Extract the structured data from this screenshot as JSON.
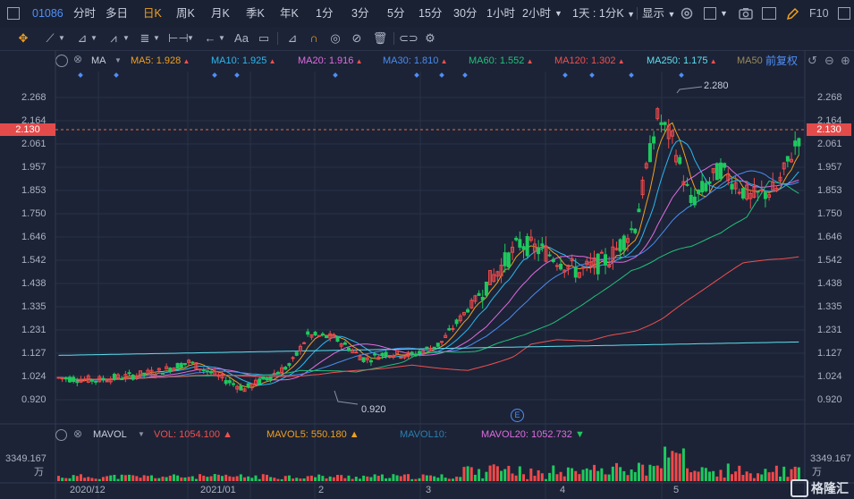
{
  "topbar": {
    "code": "01086",
    "items": [
      "分时",
      "多日",
      "日K",
      "周K",
      "月K",
      "季K",
      "年K",
      "1分",
      "3分",
      "5分",
      "15分",
      "30分",
      "1小时",
      "2小时"
    ],
    "active": "日K",
    "period_select": "1天 : 1分K",
    "display_label": "显示",
    "f10_label": "F10"
  },
  "toolbar": {
    "text_tool": "Aa"
  },
  "ma_bar": {
    "indicator": "MA",
    "items": [
      {
        "label": "MA5: 1.928",
        "color": "#f0a020"
      },
      {
        "label": "MA10: 1.925",
        "color": "#2bb8f0"
      },
      {
        "label": "MA20: 1.916",
        "color": "#e06ce0"
      },
      {
        "label": "MA30: 1.810",
        "color": "#4a8cf0"
      },
      {
        "label": "MA60: 1.552",
        "color": "#22c07a"
      },
      {
        "label": "MA120: 1.302",
        "color": "#f05050"
      },
      {
        "label": "MA250: 1.175",
        "color": "#5ce0f0"
      },
      {
        "label": "MA50",
        "color": "#9a8a5a"
      }
    ],
    "adjust_label": "前复权"
  },
  "price_axis": {
    "labels": [
      "2.268",
      "2.164",
      "2.061",
      "1.957",
      "1.853",
      "1.750",
      "1.646",
      "1.542",
      "1.438",
      "1.335",
      "1.231",
      "1.127",
      "1.024",
      "0.920"
    ],
    "current": "2.130",
    "high_marker": "2.280",
    "low_marker": "0.920",
    "event_marker": "E"
  },
  "volume": {
    "indicator": "MAVOL",
    "vol": "VOL: 1054.100",
    "mavol5": "MAVOL5: 550.180",
    "mavol10": "MAVOL10:",
    "mavol20": "MAVOL20: 1052.732",
    "max_label": "3349.167",
    "unit": "万"
  },
  "x_axis": [
    "2020/12",
    "2021/01",
    "2",
    "3",
    "4",
    "5"
  ],
  "logo": "格隆汇",
  "colors": {
    "up": "#f0494a",
    "down": "#1ec95e",
    "bg": "#1c2336"
  }
}
